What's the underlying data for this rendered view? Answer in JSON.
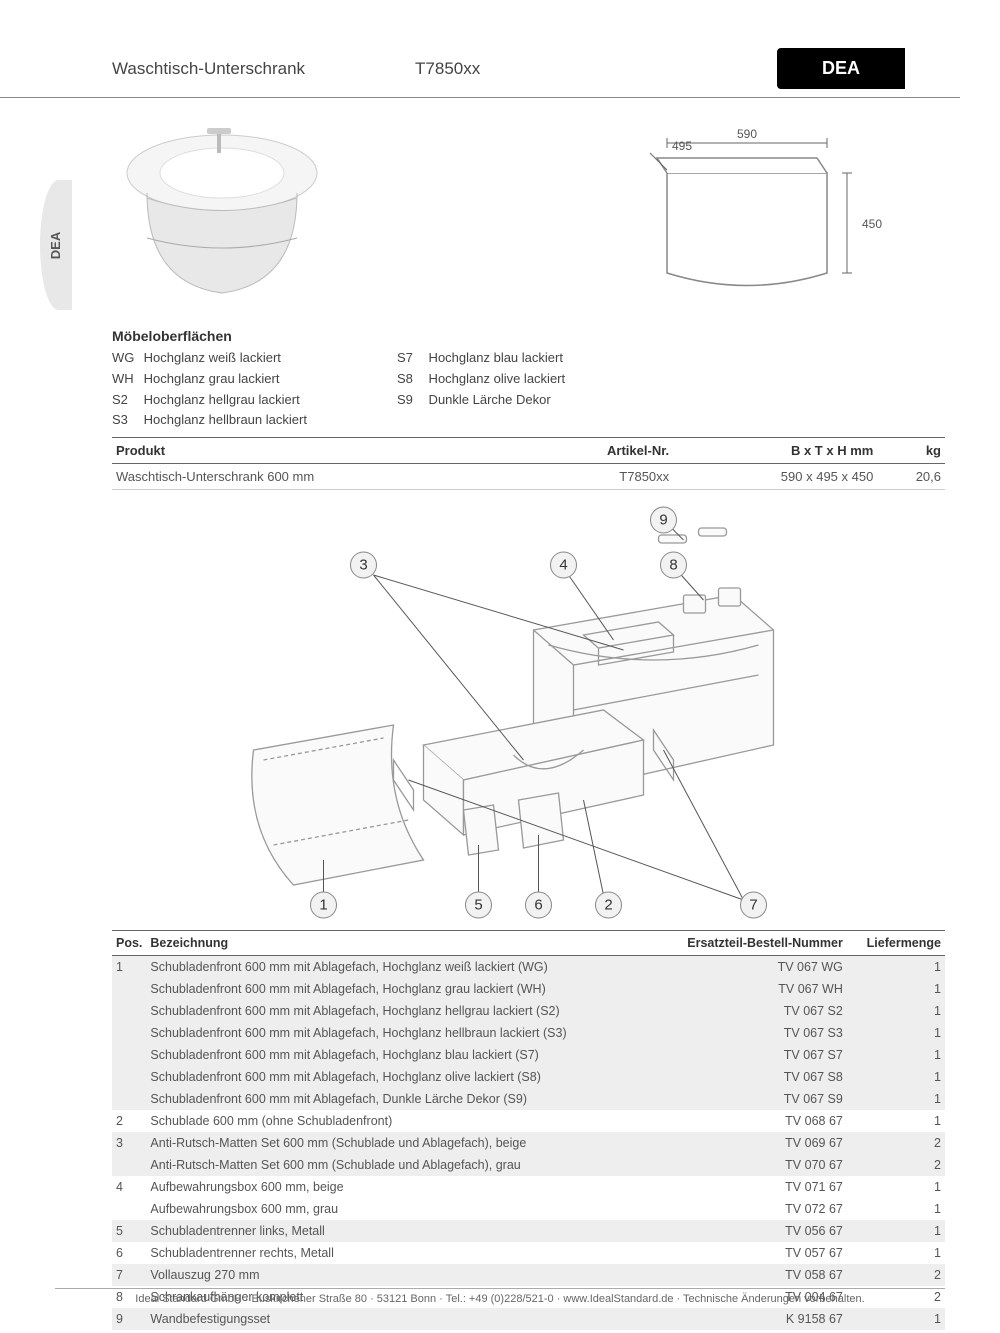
{
  "header": {
    "title": "Waschtisch-Unterschrank",
    "model": "T7850xx",
    "brand": "DEA",
    "side_tab": "DEA"
  },
  "dimensions": {
    "width": "590",
    "depth": "495",
    "height": "450"
  },
  "surfaces": {
    "heading": "Möbeloberflächen",
    "col1": [
      {
        "code": "WG",
        "label": "Hochglanz weiß lackiert"
      },
      {
        "code": "WH",
        "label": "Hochglanz grau lackiert"
      },
      {
        "code": "S2",
        "label": "Hochglanz hellgrau lackiert"
      },
      {
        "code": "S3",
        "label": "Hochglanz hellbraun lackiert"
      }
    ],
    "col2": [
      {
        "code": "S7",
        "label": "Hochglanz blau lackiert"
      },
      {
        "code": "S8",
        "label": "Hochglanz olive lackiert"
      },
      {
        "code": "S9",
        "label": "Dunkle Lärche Dekor"
      }
    ]
  },
  "product_table": {
    "headers": {
      "produkt": "Produkt",
      "artikel": "Artikel-Nr.",
      "dims": "B x T x H mm",
      "kg": "kg"
    },
    "row": {
      "produkt": "Waschtisch-Unterschrank 600 mm",
      "artikel": "T7850xx",
      "dims": "590 x 495 x 450",
      "kg": "20,6"
    }
  },
  "callouts": [
    "1",
    "2",
    "3",
    "4",
    "5",
    "6",
    "7",
    "8",
    "9"
  ],
  "parts_table": {
    "headers": {
      "pos": "Pos.",
      "bez": "Bezeichnung",
      "nr": "Ersatzteil-Bestell-Nummer",
      "menge": "Liefermenge"
    },
    "rows": [
      {
        "pos": "1",
        "bez": "Schubladenfront 600 mm mit Ablagefach, Hochglanz weiß lackiert (WG)",
        "nr": "TV 067 WG",
        "menge": "1",
        "shade": true
      },
      {
        "pos": "",
        "bez": "Schubladenfront 600 mm mit Ablagefach, Hochglanz grau lackiert (WH)",
        "nr": "TV 067 WH",
        "menge": "1",
        "shade": true
      },
      {
        "pos": "",
        "bez": "Schubladenfront 600 mm mit Ablagefach, Hochglanz hellgrau lackiert (S2)",
        "nr": "TV 067 S2",
        "menge": "1",
        "shade": true
      },
      {
        "pos": "",
        "bez": "Schubladenfront 600 mm mit Ablagefach, Hochglanz hellbraun lackiert (S3)",
        "nr": "TV 067 S3",
        "menge": "1",
        "shade": true
      },
      {
        "pos": "",
        "bez": "Schubladenfront 600 mm mit Ablagefach, Hochglanz blau lackiert (S7)",
        "nr": "TV 067 S7",
        "menge": "1",
        "shade": true
      },
      {
        "pos": "",
        "bez": "Schubladenfront 600 mm mit Ablagefach, Hochglanz olive lackiert (S8)",
        "nr": "TV 067 S8",
        "menge": "1",
        "shade": true
      },
      {
        "pos": "",
        "bez": "Schubladenfront 600 mm mit Ablagefach, Dunkle Lärche Dekor (S9)",
        "nr": "TV 067 S9",
        "menge": "1",
        "shade": true
      },
      {
        "pos": "2",
        "bez": "Schublade 600 mm (ohne Schubladenfront)",
        "nr": "TV 068 67",
        "menge": "1",
        "shade": false
      },
      {
        "pos": "3",
        "bez": "Anti-Rutsch-Matten Set 600 mm (Schublade und Ablagefach), beige",
        "nr": "TV 069 67",
        "menge": "2",
        "shade": true
      },
      {
        "pos": "",
        "bez": "Anti-Rutsch-Matten Set 600 mm (Schublade und Ablagefach), grau",
        "nr": "TV 070 67",
        "menge": "2",
        "shade": true
      },
      {
        "pos": "4",
        "bez": "Aufbewahrungsbox 600 mm, beige",
        "nr": "TV 071 67",
        "menge": "1",
        "shade": false
      },
      {
        "pos": "",
        "bez": "Aufbewahrungsbox 600 mm, grau",
        "nr": "TV 072 67",
        "menge": "1",
        "shade": false
      },
      {
        "pos": "5",
        "bez": "Schubladentrenner links, Metall",
        "nr": "TV 056 67",
        "menge": "1",
        "shade": true
      },
      {
        "pos": "6",
        "bez": "Schubladentrenner rechts, Metall",
        "nr": "TV 057 67",
        "menge": "1",
        "shade": false
      },
      {
        "pos": "7",
        "bez": "Vollauszug 270 mm",
        "nr": "TV 058 67",
        "menge": "2",
        "shade": true
      },
      {
        "pos": "8",
        "bez": "Schrankaufhänger komplett",
        "nr": "TV 004 67",
        "menge": "2",
        "shade": false
      },
      {
        "pos": "9",
        "bez": "Wandbefestigungsset",
        "nr": "K 9158 67",
        "menge": "1",
        "shade": true
      }
    ]
  },
  "footer": "Ideal Standard GmbH · Euskirchener Straße 80 · 53121 Bonn · Tel.: +49 (0)228/521-0 · www.IdealStandard.de · Technische Änderungen vorbehalten.",
  "colors": {
    "text": "#333333",
    "muted": "#555555",
    "border": "#888888",
    "shade_row": "#eeeeee",
    "brand_bg": "#000000",
    "brand_fg": "#ffffff"
  }
}
